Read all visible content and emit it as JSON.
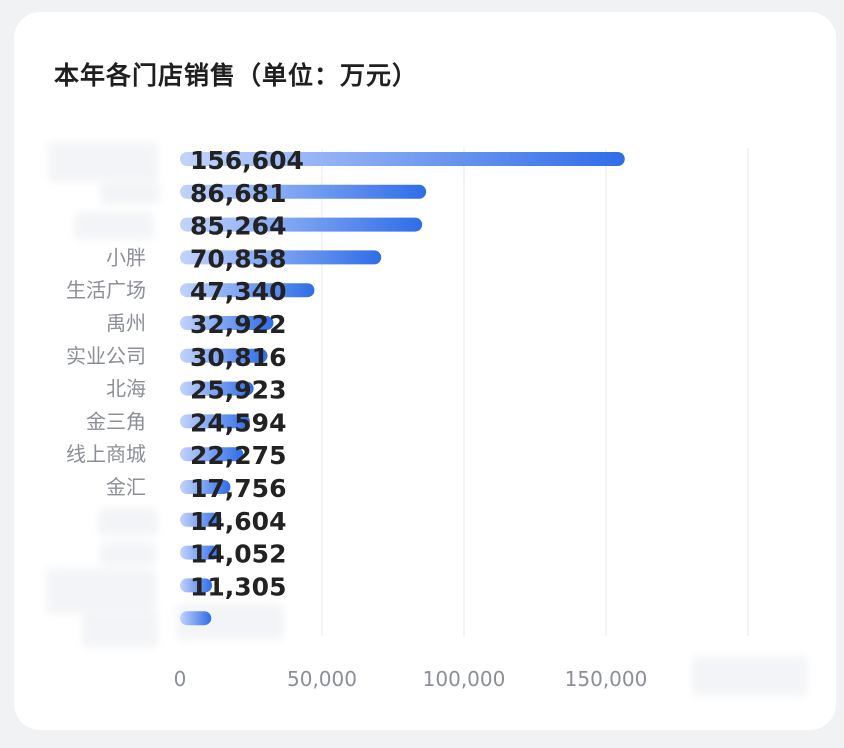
{
  "chart_data": {
    "type": "bar",
    "orientation": "horizontal",
    "title": "本年各门店销售（单位：万元）",
    "categories": [
      "",
      "",
      "",
      "小胖",
      "生活广场",
      "禹州",
      "实业公司",
      "北海",
      "金三角",
      "线上商城",
      "金汇",
      "",
      "",
      "",
      ""
    ],
    "values": [
      156604,
      86681,
      85264,
      70858,
      47340,
      32922,
      30816,
      25923,
      24594,
      22275,
      17756,
      14604,
      14052,
      11305,
      11000
    ],
    "value_labels": [
      "156,604",
      "86,681",
      "85,264",
      "70,858",
      "47,340",
      "32,922",
      "30,816",
      "25,923",
      "24,594",
      "22,275",
      "17,756",
      "14,604",
      "14,052",
      "11,305",
      ""
    ],
    "x_ticks": [
      "0",
      "50,000",
      "100,000",
      "150,000"
    ],
    "xlim": [
      0,
      200000
    ],
    "grid": true,
    "colors": {
      "bar_start": "#c3d3fb",
      "bar_end": "#2f6de8",
      "grid": "#e6e8ec",
      "tick_text": "#8c8f96",
      "category_text": "#8c8f96",
      "value_text": "#222222"
    }
  }
}
